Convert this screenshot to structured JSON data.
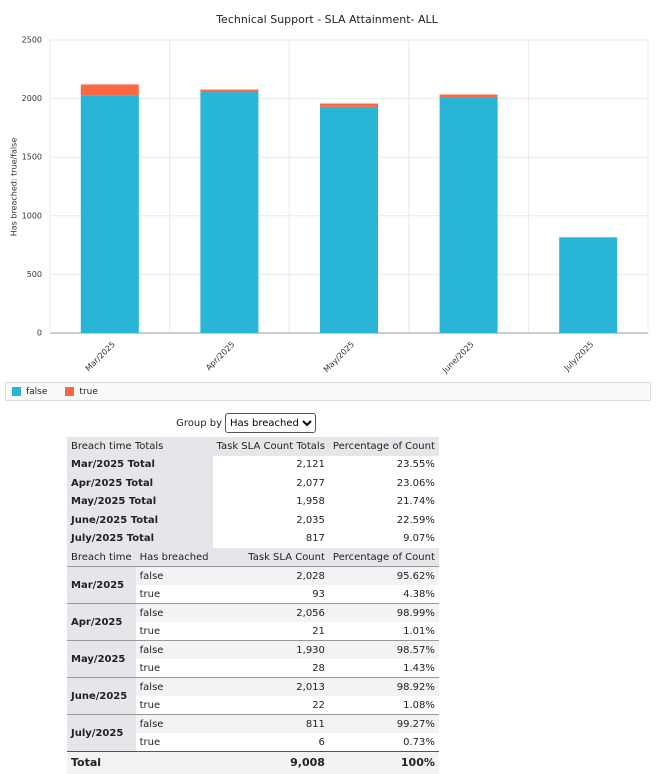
{
  "chart_data": {
    "type": "bar",
    "stacked": true,
    "title": "Technical Support - SLA Attainment- ALL",
    "y_label": "Has breached: true/false",
    "categories": [
      "Mar/2025",
      "Apr/2025",
      "May/2025",
      "June/2025",
      "July/2025"
    ],
    "series": [
      {
        "name": "false",
        "color": "#29b5d6",
        "values": [
          2028,
          2056,
          1930,
          2013,
          811
        ]
      },
      {
        "name": "true",
        "color": "#fa6843",
        "values": [
          93,
          21,
          28,
          22,
          6
        ]
      }
    ],
    "ylim": [
      0,
      2500
    ],
    "yticks": [
      0,
      500,
      1000,
      1500,
      2000,
      2500
    ],
    "grid": true,
    "legend": "bottom"
  },
  "group_by": {
    "label": "Group by",
    "value": "Has breached"
  },
  "table": {
    "totals_header": [
      "Breach time Totals",
      "Task SLA Count Totals",
      "Percentage of Count"
    ],
    "totals_rows": [
      [
        "Mar/2025 Total",
        "2,121",
        "23.55%"
      ],
      [
        "Apr/2025 Total",
        "2,077",
        "23.06%"
      ],
      [
        "May/2025 Total",
        "1,958",
        "21.74%"
      ],
      [
        "June/2025 Total",
        "2,035",
        "22.59%"
      ],
      [
        "July/2025 Total",
        "817",
        "9.07%"
      ]
    ],
    "detail_header": [
      "Breach time",
      "Has breached",
      "Task SLA Count",
      "Percentage of Count"
    ],
    "groups": [
      {
        "label": "Mar/2025",
        "rows": [
          [
            "false",
            "2,028",
            "95.62%"
          ],
          [
            "true",
            "93",
            "4.38%"
          ]
        ]
      },
      {
        "label": "Apr/2025",
        "rows": [
          [
            "false",
            "2,056",
            "98.99%"
          ],
          [
            "true",
            "21",
            "1.01%"
          ]
        ]
      },
      {
        "label": "May/2025",
        "rows": [
          [
            "false",
            "1,930",
            "98.57%"
          ],
          [
            "true",
            "28",
            "1.43%"
          ]
        ]
      },
      {
        "label": "June/2025",
        "rows": [
          [
            "false",
            "2,013",
            "98.92%"
          ],
          [
            "true",
            "22",
            "1.08%"
          ]
        ]
      },
      {
        "label": "July/2025",
        "rows": [
          [
            "false",
            "811",
            "99.27%"
          ],
          [
            "true",
            "6",
            "0.73%"
          ]
        ]
      }
    ],
    "total": [
      "Total",
      "9,008",
      "100%"
    ]
  }
}
